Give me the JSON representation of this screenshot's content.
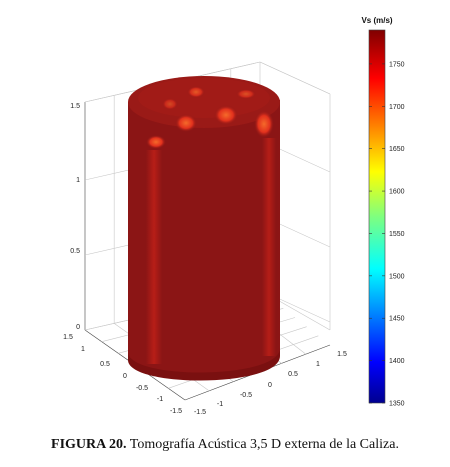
{
  "figure": {
    "caption_number": "FIGURA 20.",
    "caption_text": " Tomografía Acústica 3,5 D externa de la Caliza."
  },
  "chart_data": {
    "type": "surface",
    "description_visible": "3D cylinder surface colored by Vs",
    "z_ticks": [
      "0",
      "0.5",
      "1",
      "1.5"
    ],
    "zlim": [
      0,
      1.5
    ],
    "x_ticks": [
      "-1.5",
      "-1",
      "-0.5",
      "0",
      "0.5",
      "1",
      "1.5"
    ],
    "y_ticks": [
      "-1.5",
      "-1",
      "-0.5",
      "0",
      "0.5",
      "1",
      "1.5"
    ],
    "xlim": [
      -1.5,
      1.5
    ],
    "ylim": [
      -1.5,
      1.5
    ],
    "grid": true,
    "colorbar": {
      "title": "Vs (m/s)",
      "ticks": [
        1350,
        1400,
        1450,
        1500,
        1550,
        1600,
        1650,
        1700,
        1750
      ],
      "range": [
        1350,
        1790
      ],
      "colormap": "jet"
    },
    "surface_values_vs": {
      "dominant": 1790,
      "side_bands": [
        1730,
        1720
      ],
      "top_spots": [
        1725,
        1715,
        1720,
        1740,
        1745
      ]
    },
    "colors": {
      "dominant": "#8b1515",
      "band_red": "#cc1f1a",
      "spot_red": "#e8331f",
      "spot_orange": "#f25a22"
    }
  }
}
